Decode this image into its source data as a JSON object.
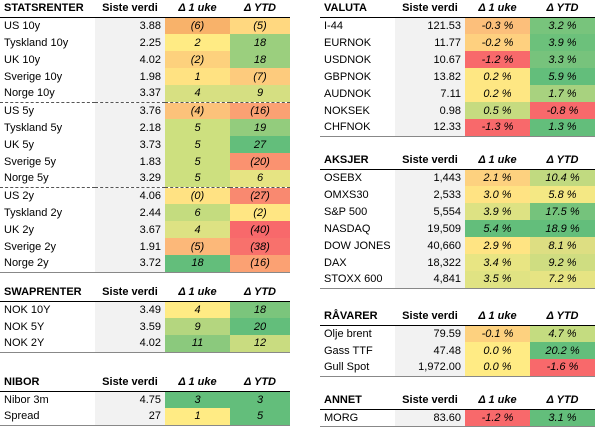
{
  "sections": [
    {
      "title": "STATSRENTER",
      "headers": [
        "Siste verdi",
        "Δ 1 uke",
        "Δ YTD"
      ],
      "rows": [
        [
          "US 10y",
          "3.88",
          "(6)",
          "(5)"
        ],
        [
          "Tyskland 10y",
          "2.25",
          "2",
          "18"
        ],
        [
          "UK 10y",
          "4.02",
          "(2)",
          "18"
        ],
        [
          "Sverige 10y",
          "1.98",
          "1",
          "(7)"
        ],
        [
          "Norge 10y",
          "3.37",
          "4",
          "9"
        ],
        [
          "US 5y",
          "3.76",
          "(4)",
          "(16)"
        ],
        [
          "Tyskland 5y",
          "2.18",
          "5",
          "19"
        ],
        [
          "UK 5y",
          "3.73",
          "5",
          "27"
        ],
        [
          "Sverige 5y",
          "1.83",
          "5",
          "(20)"
        ],
        [
          "Norge 5y",
          "3.29",
          "5",
          "6"
        ],
        [
          "US 2y",
          "4.06",
          "(0)",
          "(27)"
        ],
        [
          "Tyskland 2y",
          "2.44",
          "6",
          "(2)"
        ],
        [
          "UK 2y",
          "3.67",
          "4",
          "(40)"
        ],
        [
          "Sverige 2y",
          "1.91",
          "(5)",
          "(38)"
        ],
        [
          "Norge 2y",
          "3.72",
          "18",
          "(16)"
        ]
      ],
      "colors": [
        [
          "#f8b26a",
          "#ffd880"
        ],
        [
          "#ffeb84",
          "#9bcf7e"
        ],
        [
          "#fdd17d",
          "#9bcf7e"
        ],
        [
          "#ffe282",
          "#fdcb7d"
        ],
        [
          "#d7e082",
          "#d5df82"
        ],
        [
          "#fcc27a",
          "#fba173"
        ],
        [
          "#cde07f",
          "#93cc7d"
        ],
        [
          "#cde07f",
          "#63be7b"
        ],
        [
          "#cde07f",
          "#fa9270"
        ],
        [
          "#cde07f",
          "#e6e483"
        ],
        [
          "#ffe283",
          "#f98970"
        ],
        [
          "#c4dc7f",
          "#ffe683"
        ],
        [
          "#dde283",
          "#f8696b"
        ],
        [
          "#fcb879",
          "#f8716c"
        ],
        [
          "#63be7b",
          "#fba173"
        ]
      ]
    },
    {
      "title": "SWAPRENTER",
      "headers": [
        "Siste verdi",
        "Δ 1 uke",
        "Δ YTD"
      ],
      "rows": [
        [
          "NOK 10Y",
          "3.49",
          "4",
          "18"
        ],
        [
          "NOK 5Y",
          "3.59",
          "9",
          "20"
        ],
        [
          "NOK 2Y",
          "4.02",
          "11",
          "12"
        ]
      ],
      "colors": [
        [
          "#ffeb84",
          "#7bc57c"
        ],
        [
          "#b4d67f",
          "#63be7b"
        ],
        [
          "#8bc97d",
          "#c9dc80"
        ]
      ]
    },
    {
      "title": "NIBOR",
      "headers": [
        "Siste verdi",
        "Δ 1 uke",
        "Δ YTD"
      ],
      "rows": [
        [
          "Nibor 3m",
          "4.75",
          "3",
          "3"
        ],
        [
          "Spread",
          "27",
          "1",
          "5"
        ]
      ],
      "colors": [
        [
          "#63be7b",
          "#63be7b"
        ],
        [
          "#ffeb84",
          "#63be7b"
        ]
      ]
    },
    {
      "title": "VALUTA",
      "headers": [
        "Siste verdi",
        "Δ 1 uke",
        "Δ YTD"
      ],
      "rows": [
        [
          "I-44",
          "121.53",
          "-0.3 %",
          "3.2 %"
        ],
        [
          "EURNOK",
          "11.77",
          "-0.2 %",
          "3.9 %"
        ],
        [
          "USDNOK",
          "10.67",
          "-1.2 %",
          "3.3 %"
        ],
        [
          "GBPNOK",
          "13.82",
          "0.2 %",
          "5.9 %"
        ],
        [
          "AUDNOK",
          "7.11",
          "0.2 %",
          "1.7 %"
        ],
        [
          "NOKSEK",
          "0.98",
          "0.5 %",
          "-0.8 %"
        ],
        [
          "CHFNOK",
          "12.33",
          "-1.3 %",
          "1.3 %"
        ]
      ],
      "colors": [
        [
          "#fcbf7b",
          "#78c47c"
        ],
        [
          "#fed07f",
          "#6cc17b"
        ],
        [
          "#f8696b",
          "#77c37c"
        ],
        [
          "#fee783",
          "#63be7b"
        ],
        [
          "#fee783",
          "#a8d27f"
        ],
        [
          "#c6db80",
          "#f8696b"
        ],
        [
          "#f8696b",
          "#63be7b"
        ]
      ]
    },
    {
      "title": "AKSJER",
      "headers": [
        "Siste verdi",
        "Δ 1 uke",
        "Δ YTD"
      ],
      "rows": [
        [
          "OSEBX",
          "1,443",
          "2.1 %",
          "10.4 %"
        ],
        [
          "OMXS30",
          "2,533",
          "3.0 %",
          "5.8 %"
        ],
        [
          "S&P 500",
          "5,554",
          "3.9 %",
          "17.5 %"
        ],
        [
          "NASDAQ",
          "19,509",
          "5.4 %",
          "18.9 %"
        ],
        [
          "DOW JONES",
          "40,660",
          "2.9 %",
          "8.1 %"
        ],
        [
          "DAX",
          "18,322",
          "3.4 %",
          "9.2 %"
        ],
        [
          "STOXX 600",
          "4,841",
          "3.5 %",
          "7.2 %"
        ]
      ],
      "colors": [
        [
          "#fdd17f",
          "#c1da80"
        ],
        [
          "#ffe383",
          "#f4e884"
        ],
        [
          "#dde283",
          "#75c37c"
        ],
        [
          "#63be7b",
          "#63be7b"
        ],
        [
          "#ffe483",
          "#ddde82"
        ],
        [
          "#e8e583",
          "#cfdd81"
        ],
        [
          "#e0e383",
          "#e6e483"
        ]
      ]
    },
    {
      "title": "RÅVARER",
      "headers": [
        "Siste verdi",
        "Δ 1 uke",
        "Δ YTD"
      ],
      "rows": [
        [
          "Olje brent",
          "79.59",
          "-0.1 %",
          "4.7 %"
        ],
        [
          "Gass TTF",
          "47.48",
          "0.0 %",
          "20.2 %"
        ],
        [
          "Gull Spot",
          "1,972.00",
          "0.0 %",
          "-1.6 %"
        ]
      ],
      "colors": [
        [
          "#fdd17f",
          "#c4dc80"
        ],
        [
          "#ffeb84",
          "#63be7b"
        ],
        [
          "#ffeb84",
          "#f8696b"
        ]
      ]
    },
    {
      "title": "ANNET",
      "headers": [
        "Siste verdi",
        "Δ 1 uke",
        "Δ YTD"
      ],
      "rows": [
        [
          "MORG",
          "83.60",
          "-1.2 %",
          "3.1 %"
        ]
      ],
      "colors": [
        [
          "#f8696b",
          "#63be7b"
        ]
      ]
    }
  ]
}
